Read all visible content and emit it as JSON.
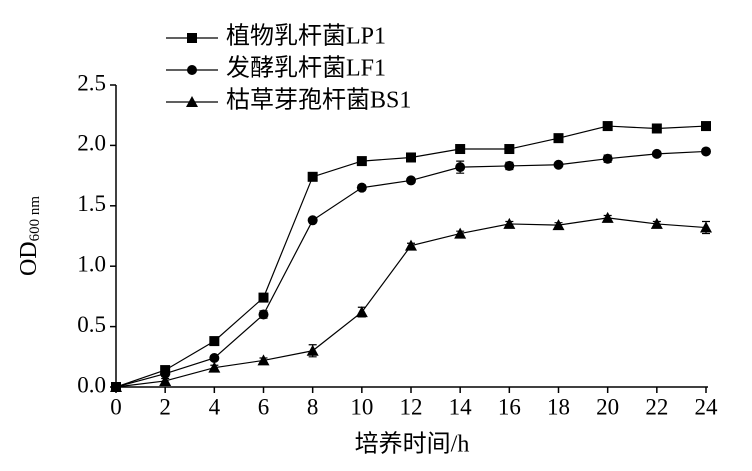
{
  "chart_data": {
    "type": "line",
    "x_label": "培养时间/h",
    "y_label": "OD",
    "y_label_sub": "600 nm",
    "x": [
      0,
      2,
      4,
      6,
      8,
      10,
      12,
      14,
      16,
      18,
      20,
      22,
      24
    ],
    "xlim": [
      0,
      24
    ],
    "xticks": [
      0,
      2,
      4,
      6,
      8,
      10,
      12,
      14,
      16,
      18,
      20,
      22,
      24
    ],
    "ylim": [
      0,
      2.5
    ],
    "yticks": [
      {
        "value": 0,
        "label": "0.0"
      },
      0.5,
      {
        "value": 1,
        "label": "1.0"
      },
      1.5,
      {
        "value": 2,
        "label": "2.0"
      },
      2.5
    ],
    "series": [
      {
        "name": "植物乳杆菌LP1",
        "color": "#000000",
        "marker": "square",
        "values": [
          0,
          0.14,
          0.38,
          0.74,
          1.74,
          1.87,
          1.9,
          1.97,
          1.97,
          2.06,
          2.16,
          2.14,
          2.16
        ],
        "errors": [
          0.01,
          0.02,
          0.02,
          0.03,
          0.02,
          0.02,
          0.03,
          0.02,
          0.02,
          0.02,
          0.02,
          0.02,
          0.02
        ]
      },
      {
        "name": "发酵乳杆菌LF1",
        "color": "#000000",
        "marker": "circle",
        "values": [
          0,
          0.11,
          0.24,
          0.6,
          1.38,
          1.65,
          1.71,
          1.82,
          1.83,
          1.84,
          1.89,
          1.93,
          1.95
        ],
        "errors": [
          0.01,
          0.02,
          0.02,
          0.03,
          0.02,
          0.02,
          0.02,
          0.05,
          0.03,
          0.02,
          0.03,
          0.02,
          0.02
        ]
      },
      {
        "name": "枯草芽孢杆菌BS1",
        "color": "#000000",
        "marker": "triangle",
        "values": [
          0,
          0.05,
          0.16,
          0.22,
          0.3,
          0.62,
          1.17,
          1.27,
          1.35,
          1.34,
          1.4,
          1.35,
          1.32
        ],
        "errors": [
          0.01,
          0.02,
          0.02,
          0.02,
          0.05,
          0.04,
          0.02,
          0.02,
          0.02,
          0.02,
          0.02,
          0.02,
          0.05
        ]
      }
    ]
  }
}
